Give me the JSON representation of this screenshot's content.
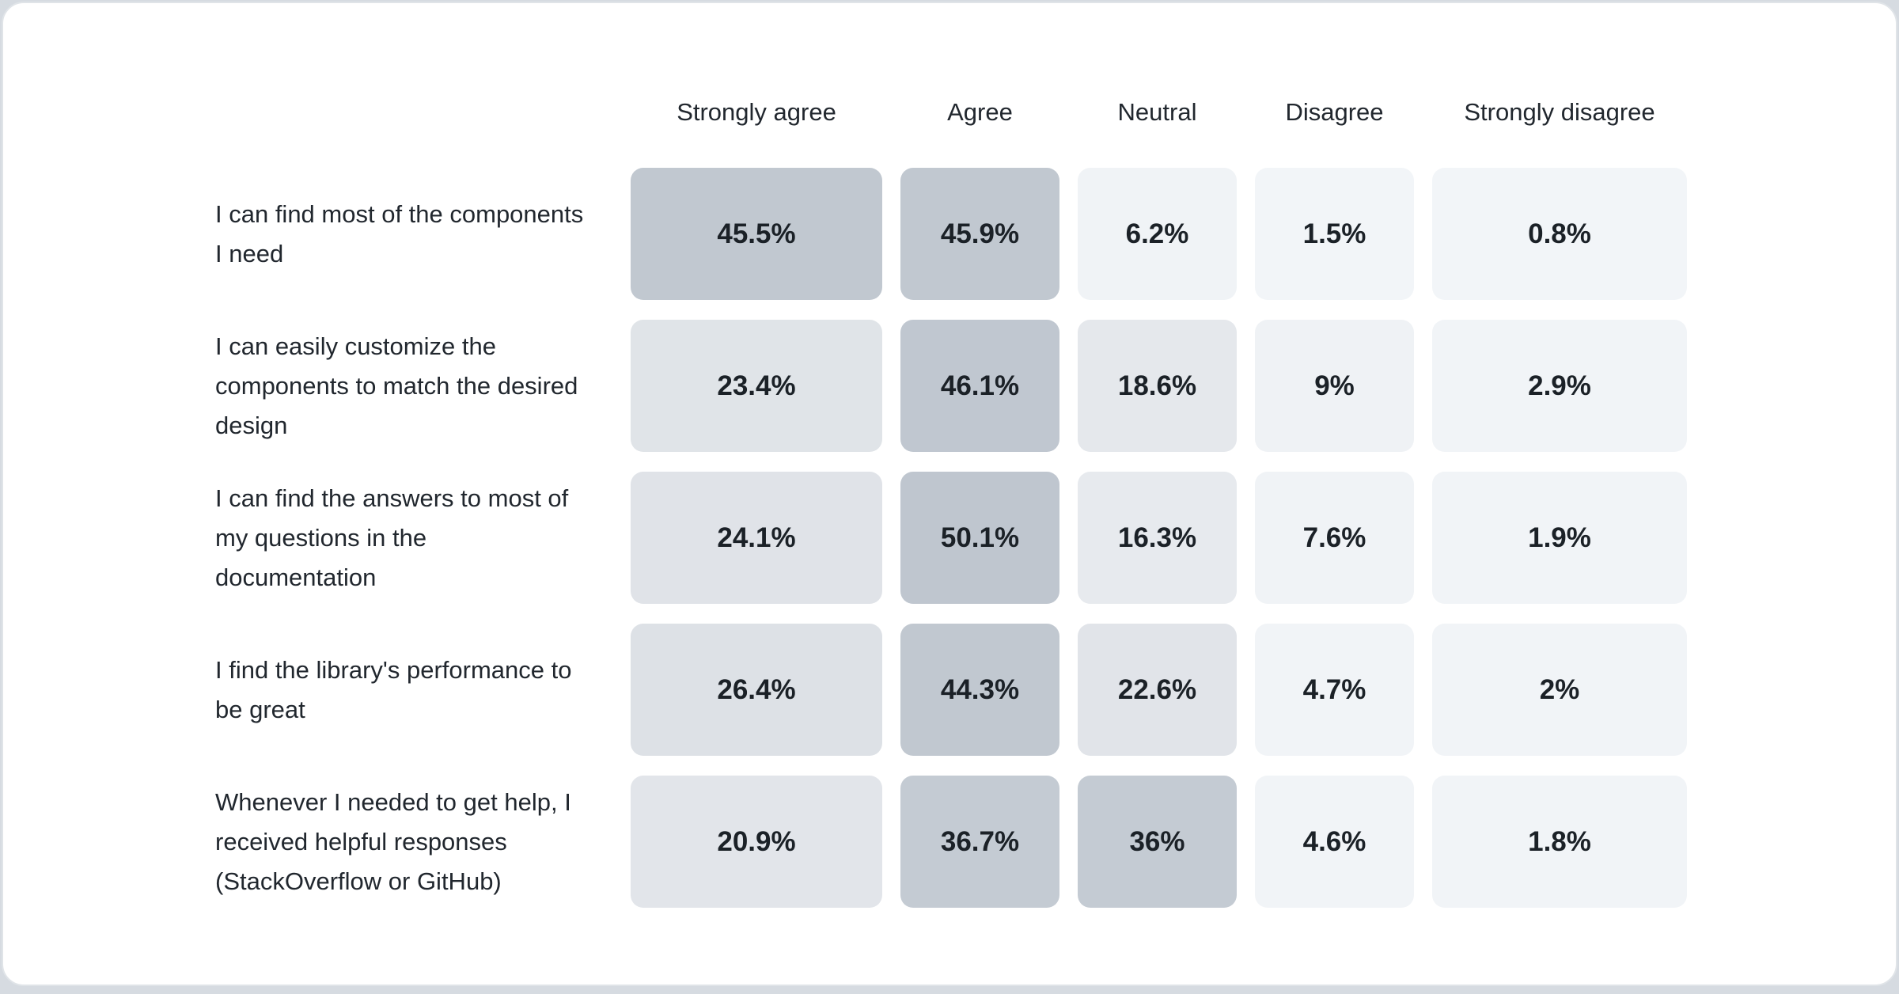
{
  "page": {
    "background": "#d6dbe1",
    "card_background": "#ffffff",
    "card_border": "#e0e4e8"
  },
  "chart_data": {
    "type": "heatmap",
    "categories": [
      "Strongly agree",
      "Agree",
      "Neutral",
      "Disagree",
      "Strongly disagree"
    ],
    "rows": [
      {
        "label": "I can find most of the components I need",
        "values": [
          45.5,
          45.9,
          6.2,
          1.5,
          0.8
        ],
        "display": [
          "45.5%",
          "45.9%",
          "6.2%",
          "1.5%",
          "0.8%"
        ]
      },
      {
        "label": "I can easily customize the components to match the desired design",
        "values": [
          23.4,
          46.1,
          18.6,
          9,
          2.9
        ],
        "display": [
          "23.4%",
          "46.1%",
          "18.6%",
          "9%",
          "2.9%"
        ]
      },
      {
        "label": "I can find the answers to most of my questions in the documentation",
        "values": [
          24.1,
          50.1,
          16.3,
          7.6,
          1.9
        ],
        "display": [
          "24.1%",
          "50.1%",
          "16.3%",
          "7.6%",
          "1.9%"
        ]
      },
      {
        "label": "I find the library's performance to be great",
        "values": [
          26.4,
          44.3,
          22.6,
          4.7,
          2
        ],
        "display": [
          "26.4%",
          "44.3%",
          "22.6%",
          "4.7%",
          "2%"
        ]
      },
      {
        "label": "Whenever I needed to get help, I received helpful responses (StackOverflow or GitHub)",
        "values": [
          20.9,
          36.7,
          36,
          4.6,
          1.8
        ],
        "display": [
          "20.9%",
          "36.7%",
          "36%",
          "4.6%",
          "1.8%"
        ]
      }
    ],
    "heat_scale": {
      "anchors": [
        [
          0,
          "#f2f5f8"
        ],
        [
          10,
          "#eff2f5"
        ],
        [
          15,
          "#e9ecf0"
        ],
        [
          20,
          "#e3e6ea"
        ],
        [
          26,
          "#dee2e7"
        ],
        [
          33,
          "#c8cfd7"
        ],
        [
          36,
          "#c4cbd3"
        ],
        [
          42,
          "#c2c9d1"
        ],
        [
          50,
          "#bfc6cf"
        ]
      ],
      "value_text_color": "#1b2127",
      "label_text_color": "#21272e"
    },
    "legend_position": "none",
    "grid": false
  }
}
